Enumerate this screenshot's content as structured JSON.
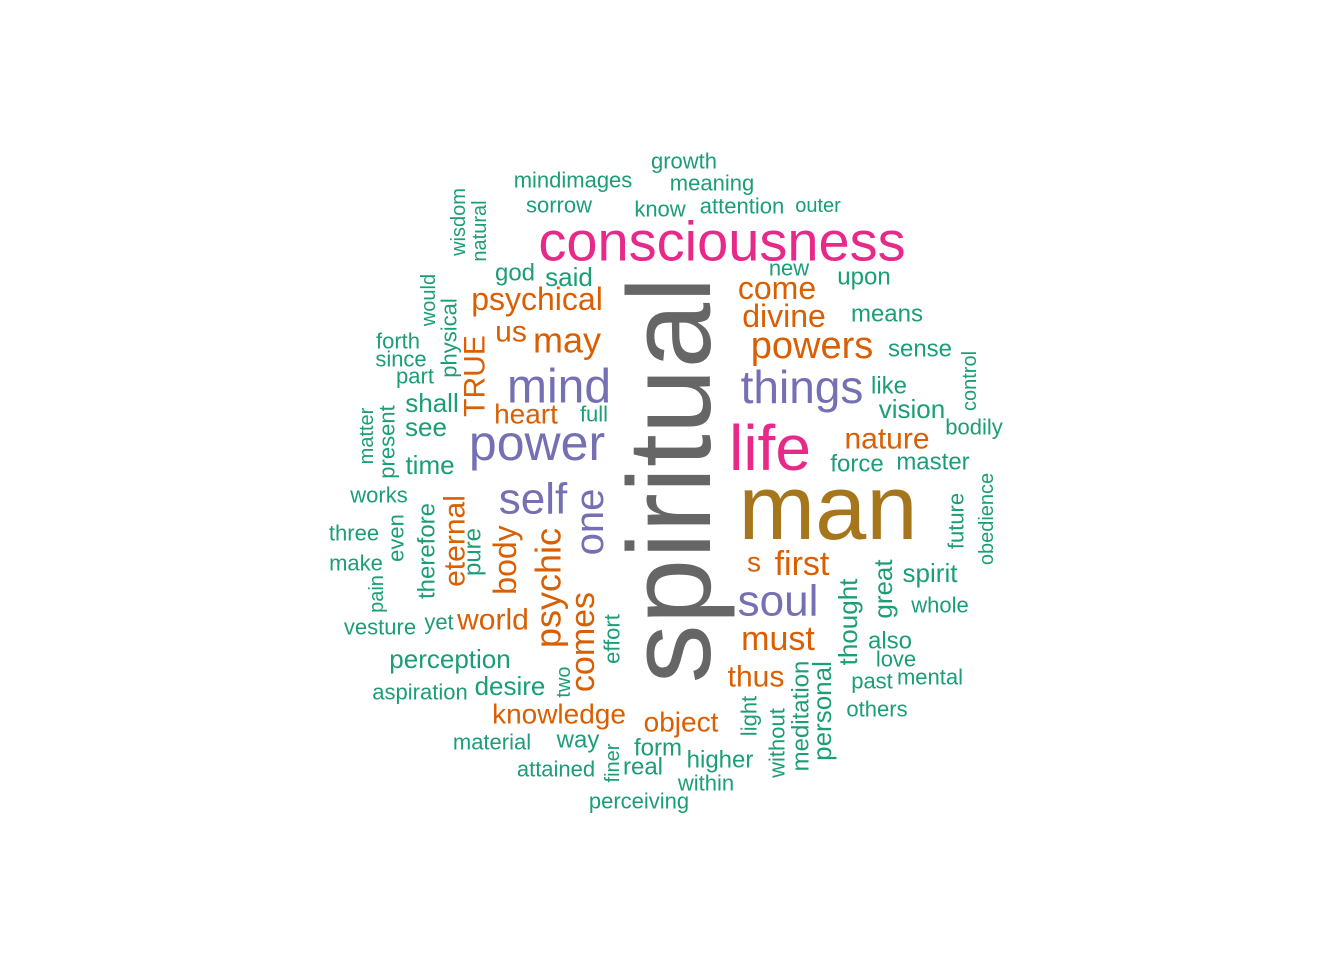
{
  "palette": {
    "gray": "#666666",
    "gold": "#A6761D",
    "magenta": "#E7298A",
    "purple": "#7570B3",
    "orange": "#D95F02",
    "teal": "#1B9E77"
  },
  "words": [
    {
      "text": "spiritual",
      "color": "gray"
    },
    {
      "text": "man",
      "color": "gold"
    },
    {
      "text": "consciousness",
      "color": "magenta"
    },
    {
      "text": "life",
      "color": "magenta"
    },
    {
      "text": "power",
      "color": "purple"
    },
    {
      "text": "mind",
      "color": "purple"
    },
    {
      "text": "things",
      "color": "purple"
    },
    {
      "text": "self",
      "color": "purple"
    },
    {
      "text": "soul",
      "color": "purple"
    },
    {
      "text": "one",
      "color": "purple"
    },
    {
      "text": "psychical",
      "color": "orange"
    },
    {
      "text": "may",
      "color": "orange"
    },
    {
      "text": "us",
      "color": "orange"
    },
    {
      "text": "TRUE",
      "color": "orange"
    },
    {
      "text": "heart",
      "color": "orange"
    },
    {
      "text": "come",
      "color": "orange"
    },
    {
      "text": "divine",
      "color": "orange"
    },
    {
      "text": "powers",
      "color": "orange"
    },
    {
      "text": "nature",
      "color": "orange"
    },
    {
      "text": "eternal",
      "color": "orange"
    },
    {
      "text": "body",
      "color": "orange"
    },
    {
      "text": "psychic",
      "color": "orange"
    },
    {
      "text": "comes",
      "color": "orange"
    },
    {
      "text": "world",
      "color": "orange"
    },
    {
      "text": "s",
      "color": "orange"
    },
    {
      "text": "first",
      "color": "orange"
    },
    {
      "text": "must",
      "color": "orange"
    },
    {
      "text": "thus",
      "color": "orange"
    },
    {
      "text": "knowledge",
      "color": "orange"
    },
    {
      "text": "object",
      "color": "orange"
    },
    {
      "text": "growth",
      "color": "teal"
    },
    {
      "text": "mindimages",
      "color": "teal"
    },
    {
      "text": "meaning",
      "color": "teal"
    },
    {
      "text": "sorrow",
      "color": "teal"
    },
    {
      "text": "know",
      "color": "teal"
    },
    {
      "text": "attention",
      "color": "teal"
    },
    {
      "text": "outer",
      "color": "teal"
    },
    {
      "text": "wisdom",
      "color": "teal"
    },
    {
      "text": "natural",
      "color": "teal"
    },
    {
      "text": "god",
      "color": "teal"
    },
    {
      "text": "said",
      "color": "teal"
    },
    {
      "text": "new",
      "color": "teal"
    },
    {
      "text": "upon",
      "color": "teal"
    },
    {
      "text": "would",
      "color": "teal"
    },
    {
      "text": "physical",
      "color": "teal"
    },
    {
      "text": "forth",
      "color": "teal"
    },
    {
      "text": "since",
      "color": "teal"
    },
    {
      "text": "means",
      "color": "teal"
    },
    {
      "text": "part",
      "color": "teal"
    },
    {
      "text": "sense",
      "color": "teal"
    },
    {
      "text": "control",
      "color": "teal"
    },
    {
      "text": "like",
      "color": "teal"
    },
    {
      "text": "shall",
      "color": "teal"
    },
    {
      "text": "full",
      "color": "teal"
    },
    {
      "text": "vision",
      "color": "teal"
    },
    {
      "text": "matter",
      "color": "teal"
    },
    {
      "text": "see",
      "color": "teal"
    },
    {
      "text": "present",
      "color": "teal"
    },
    {
      "text": "bodily",
      "color": "teal"
    },
    {
      "text": "time",
      "color": "teal"
    },
    {
      "text": "force",
      "color": "teal"
    },
    {
      "text": "master",
      "color": "teal"
    },
    {
      "text": "works",
      "color": "teal"
    },
    {
      "text": "obedience",
      "color": "teal"
    },
    {
      "text": "future",
      "color": "teal"
    },
    {
      "text": "three",
      "color": "teal"
    },
    {
      "text": "therefore",
      "color": "teal"
    },
    {
      "text": "even",
      "color": "teal"
    },
    {
      "text": "pure",
      "color": "teal"
    },
    {
      "text": "make",
      "color": "teal"
    },
    {
      "text": "spirit",
      "color": "teal"
    },
    {
      "text": "great",
      "color": "teal"
    },
    {
      "text": "pain",
      "color": "teal"
    },
    {
      "text": "whole",
      "color": "teal"
    },
    {
      "text": "vesture",
      "color": "teal"
    },
    {
      "text": "yet",
      "color": "teal"
    },
    {
      "text": "effort",
      "color": "teal"
    },
    {
      "text": "thought",
      "color": "teal"
    },
    {
      "text": "also",
      "color": "teal"
    },
    {
      "text": "perception",
      "color": "teal"
    },
    {
      "text": "love",
      "color": "teal"
    },
    {
      "text": "two",
      "color": "teal"
    },
    {
      "text": "past",
      "color": "teal"
    },
    {
      "text": "mental",
      "color": "teal"
    },
    {
      "text": "aspiration",
      "color": "teal"
    },
    {
      "text": "desire",
      "color": "teal"
    },
    {
      "text": "personal",
      "color": "teal"
    },
    {
      "text": "meditation",
      "color": "teal"
    },
    {
      "text": "light",
      "color": "teal"
    },
    {
      "text": "others",
      "color": "teal"
    },
    {
      "text": "without",
      "color": "teal"
    },
    {
      "text": "material",
      "color": "teal"
    },
    {
      "text": "way",
      "color": "teal"
    },
    {
      "text": "form",
      "color": "teal"
    },
    {
      "text": "finer",
      "color": "teal"
    },
    {
      "text": "higher",
      "color": "teal"
    },
    {
      "text": "attained",
      "color": "teal"
    },
    {
      "text": "real",
      "color": "teal"
    },
    {
      "text": "within",
      "color": "teal"
    },
    {
      "text": "perceiving",
      "color": "teal"
    }
  ]
}
